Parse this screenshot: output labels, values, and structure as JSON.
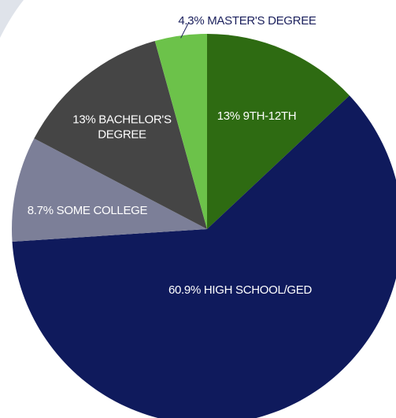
{
  "chart_data": {
    "type": "pie",
    "title": "",
    "start_angle_deg": 0,
    "slices": [
      {
        "label": "13% 9TH-12TH",
        "value": 13,
        "color": "#2e6b12",
        "label_color": "#ffffff",
        "label_lines": [
          "13%  9TH-12TH"
        ]
      },
      {
        "label": "60.9% HIGH SCHOOL/GED",
        "value": 60.9,
        "color": "#0f1a5c",
        "label_color": "#ffffff",
        "label_lines": [
          "60.9% HIGH SCHOOL/GED"
        ]
      },
      {
        "label": "8.7% SOME COLLEGE",
        "value": 8.7,
        "color": "#7c7f98",
        "label_color": "#ffffff",
        "label_lines": [
          "8.7%  SOME COLLEGE"
        ]
      },
      {
        "label": "13% BACHELOR'S DEGREE",
        "value": 13,
        "color": "#454545",
        "label_color": "#ffffff",
        "label_lines": [
          "13%  BACHELOR'S",
          "DEGREE"
        ]
      },
      {
        "label": "4.3% MASTER'S DEGREE",
        "value": 4.3,
        "color": "#6cc24a",
        "label_color": "#1a1f5c",
        "label_lines": [
          "4.3% MASTER'S DEGREE"
        ],
        "external": true
      }
    ]
  },
  "colors": {
    "background": "#ffffff",
    "corner_accent": "#dfe3ea",
    "leader_line": "#1a1f5c"
  }
}
